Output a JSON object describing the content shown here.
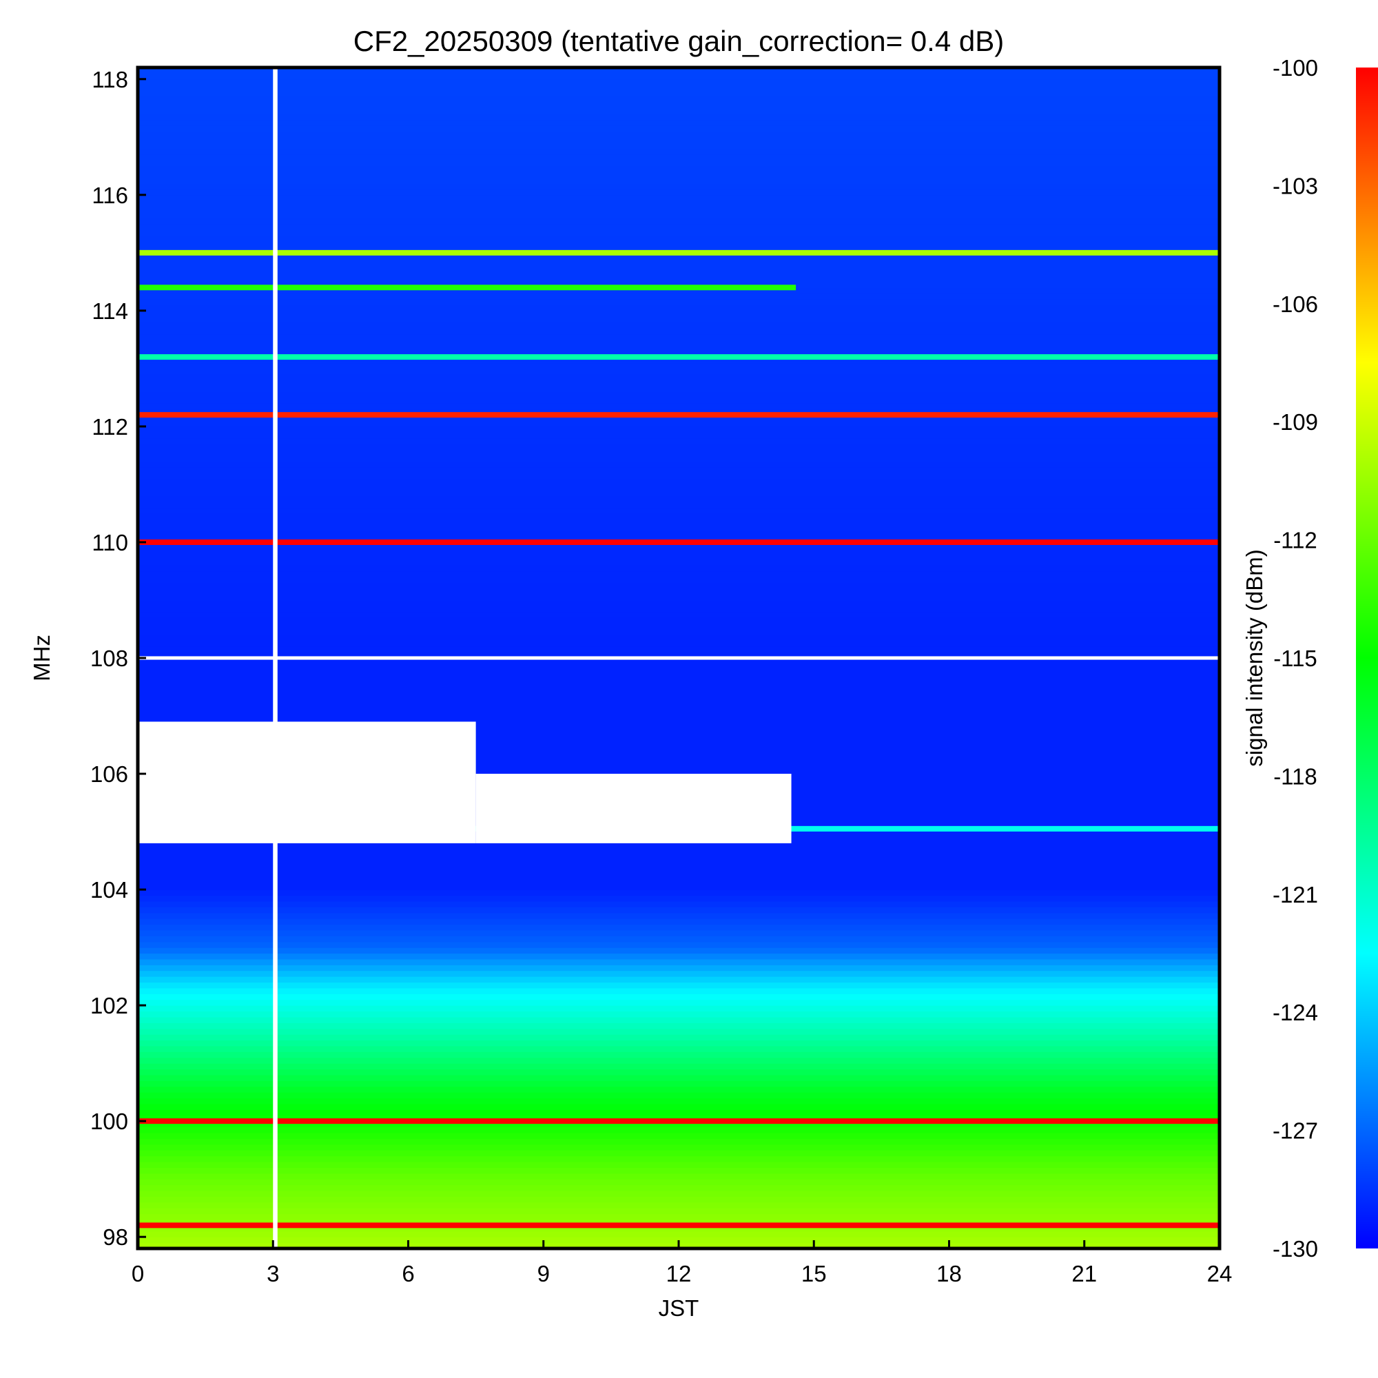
{
  "chart_data": {
    "type": "heatmap",
    "title": "CF2_20250309 (tentative gain_correction=  0.4 dB)",
    "xlabel": "JST",
    "ylabel": "MHz",
    "xlim": [
      0,
      24
    ],
    "ylim": [
      97.8,
      118.2
    ],
    "x_ticks": [
      "0",
      "3",
      "6",
      "9",
      "12",
      "15",
      "18",
      "21",
      "24"
    ],
    "y_ticks": [
      "98",
      "100",
      "102",
      "104",
      "106",
      "108",
      "110",
      "112",
      "114",
      "116",
      "118"
    ],
    "colorbar": {
      "label": "signal intensity (dBm)",
      "range": [
        -130,
        -100
      ],
      "ticks": [
        "-100",
        "-103",
        "-106",
        "-109",
        "-112",
        "-115",
        "-118",
        "-121",
        "-124",
        "-127",
        "-130"
      ],
      "colormap": [
        "#0000ff",
        "#0080ff",
        "#00ffff",
        "#00ff80",
        "#00ff00",
        "#80ff00",
        "#ffff00",
        "#ff8000",
        "#ff0000"
      ]
    },
    "background_profile": [
      {
        "mhz": 97.8,
        "dbm": -110
      },
      {
        "mhz": 99.0,
        "dbm": -112
      },
      {
        "mhz": 100.5,
        "dbm": -116
      },
      {
        "mhz": 101.5,
        "dbm": -120
      },
      {
        "mhz": 102.3,
        "dbm": -123
      },
      {
        "mhz": 103.0,
        "dbm": -127
      },
      {
        "mhz": 104.0,
        "dbm": -129
      },
      {
        "mhz": 108.0,
        "dbm": -129
      },
      {
        "mhz": 118.2,
        "dbm": -128
      }
    ],
    "strong_carriers": [
      {
        "mhz": 98.2,
        "dbm": -100,
        "jst_start": 0,
        "jst_end": 24
      },
      {
        "mhz": 100.0,
        "dbm": -100,
        "jst_start": 0,
        "jst_end": 24
      },
      {
        "mhz": 110.0,
        "dbm": -100,
        "jst_start": 0,
        "jst_end": 24
      },
      {
        "mhz": 112.2,
        "dbm": -101,
        "jst_start": 0,
        "jst_end": 24
      },
      {
        "mhz": 115.0,
        "dbm": -110,
        "jst_start": 0,
        "jst_end": 24
      },
      {
        "mhz": 114.4,
        "dbm": -114,
        "jst_start": 0,
        "jst_end": 14.6
      },
      {
        "mhz": 113.2,
        "dbm": -120,
        "jst_start": 0,
        "jst_end": 24
      },
      {
        "mhz": 105.05,
        "dbm": -122,
        "jst_start": 0,
        "jst_end": 24
      }
    ],
    "blanked_regions": [
      {
        "jst_start": 0,
        "jst_end": 7.5,
        "mhz_low": 104.8,
        "mhz_high": 106.9
      },
      {
        "jst_start": 7.5,
        "jst_end": 14.5,
        "mhz_low": 104.8,
        "mhz_high": 106.0
      },
      {
        "jst_start": 0,
        "jst_end": 24,
        "mhz_low": 107.97,
        "mhz_high": 108.03
      },
      {
        "jst_start": 3.0,
        "jst_end": 3.1,
        "mhz_low": 97.8,
        "mhz_high": 118.2
      }
    ]
  }
}
